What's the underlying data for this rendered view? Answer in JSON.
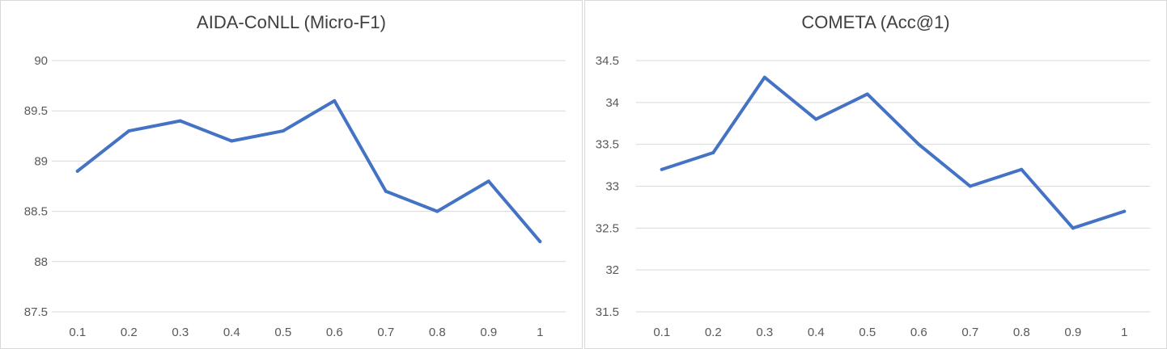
{
  "chart_data": [
    {
      "type": "line",
      "title": "AIDA-CoNLL (Micro-F1)",
      "xlabel": "",
      "ylabel": "",
      "categories": [
        "0.1",
        "0.2",
        "0.3",
        "0.4",
        "0.5",
        "0.6",
        "0.7",
        "0.8",
        "0.9",
        "1"
      ],
      "series": [
        {
          "values": [
            88.9,
            89.3,
            89.4,
            89.2,
            89.3,
            89.6,
            88.7,
            88.5,
            88.8,
            88.2
          ]
        }
      ],
      "ylim": [
        87.5,
        90
      ],
      "yticks": [
        "87.5",
        "88",
        "88.5",
        "89",
        "89.5",
        "90"
      ],
      "grid": true,
      "line_color": "#4472c4"
    },
    {
      "type": "line",
      "title": "COMETA (Acc@1)",
      "xlabel": "",
      "ylabel": "",
      "categories": [
        "0.1",
        "0.2",
        "0.3",
        "0.4",
        "0.5",
        "0.6",
        "0.7",
        "0.8",
        "0.9",
        "1"
      ],
      "series": [
        {
          "values": [
            33.2,
            33.4,
            34.3,
            33.8,
            34.1,
            33.5,
            33.0,
            33.2,
            32.5,
            32.7
          ]
        }
      ],
      "ylim": [
        31.5,
        34.5
      ],
      "yticks": [
        "31.5",
        "32",
        "32.5",
        "33",
        "33.5",
        "34",
        "34.5"
      ],
      "grid": true,
      "line_color": "#4472c4"
    }
  ]
}
